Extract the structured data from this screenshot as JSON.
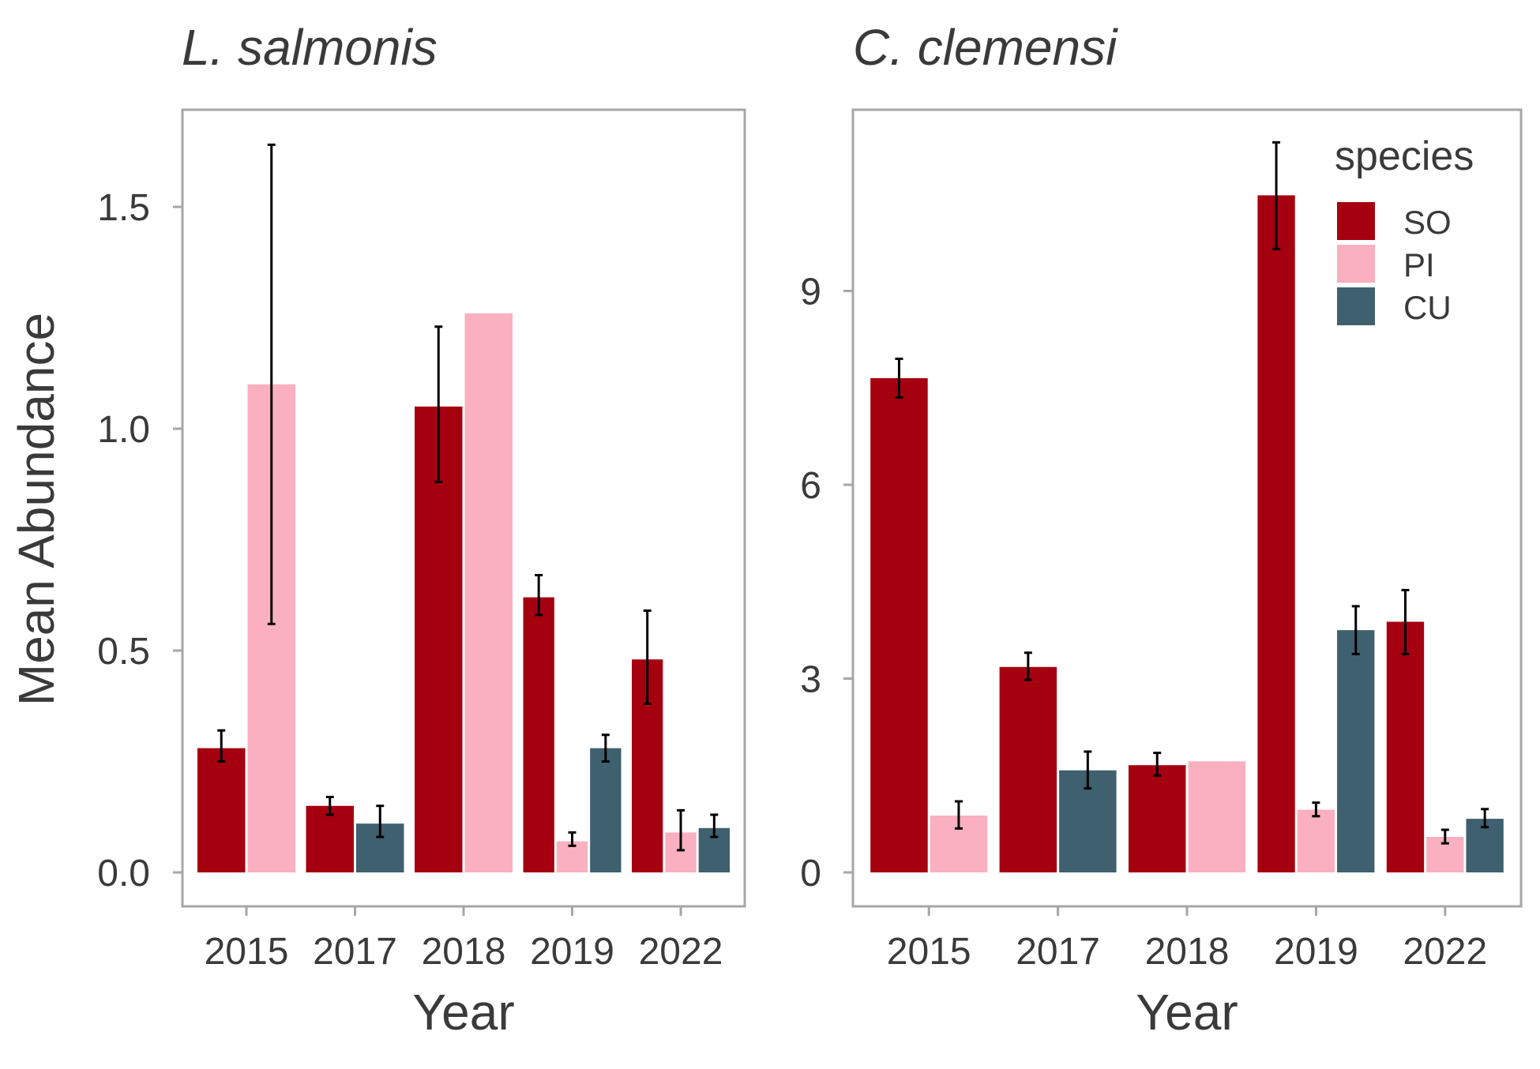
{
  "colors": {
    "SO": "#a50010",
    "PI": "#fab0c0",
    "CU": "#3f606e",
    "frame": "#a6a6a6",
    "text": "#3a3a3a",
    "error_bar": "#000000"
  },
  "legend": {
    "title": "species",
    "items": [
      {
        "key": "SO",
        "label": "SO"
      },
      {
        "key": "PI",
        "label": "PI"
      },
      {
        "key": "CU",
        "label": "CU"
      }
    ],
    "placement": "top-right of right panel"
  },
  "shared": {
    "ylabel": "Mean Abundance",
    "xlabel": "Year"
  },
  "chart_data": [
    {
      "type": "bar",
      "title": "L. salmonis",
      "xlabel": "Year",
      "ylabel": "Mean Abundance",
      "categories": [
        "2015",
        "2017",
        "2018",
        "2019",
        "2022"
      ],
      "yticks": [
        0.0,
        0.5,
        1.0,
        1.5
      ],
      "ytick_labels": [
        "0.0",
        "0.5",
        "1.0",
        "1.5"
      ],
      "ylim": [
        -0.08,
        1.72
      ],
      "grid": false,
      "groups": [
        {
          "category": "2015",
          "bars": [
            {
              "species": "SO",
              "value": 0.28,
              "err": [
                0.25,
                0.32
              ]
            },
            {
              "species": "PI",
              "value": 1.1,
              "err": [
                0.56,
                1.64
              ]
            }
          ]
        },
        {
          "category": "2017",
          "bars": [
            {
              "species": "SO",
              "value": 0.15,
              "err": [
                0.13,
                0.17
              ]
            },
            {
              "species": "CU",
              "value": 0.11,
              "err": [
                0.08,
                0.15
              ]
            }
          ]
        },
        {
          "category": "2018",
          "bars": [
            {
              "species": "SO",
              "value": 1.05,
              "err": [
                0.88,
                1.23
              ]
            },
            {
              "species": "PI",
              "value": 1.26
            }
          ]
        },
        {
          "category": "2019",
          "bars": [
            {
              "species": "SO",
              "value": 0.62,
              "err": [
                0.58,
                0.67
              ]
            },
            {
              "species": "PI",
              "value": 0.07,
              "err": [
                0.06,
                0.09
              ]
            },
            {
              "species": "CU",
              "value": 0.28,
              "err": [
                0.25,
                0.31
              ]
            }
          ]
        },
        {
          "category": "2022",
          "bars": [
            {
              "species": "SO",
              "value": 0.48,
              "err": [
                0.38,
                0.59
              ]
            },
            {
              "species": "PI",
              "value": 0.09,
              "err": [
                0.05,
                0.14
              ]
            },
            {
              "species": "CU",
              "value": 0.1,
              "err": [
                0.08,
                0.13
              ]
            }
          ]
        }
      ]
    },
    {
      "type": "bar",
      "title": "C. clemensi",
      "xlabel": "Year",
      "ylabel": "",
      "categories": [
        "2015",
        "2017",
        "2018",
        "2019",
        "2022"
      ],
      "yticks": [
        0,
        3,
        6,
        9
      ],
      "ytick_labels": [
        "0",
        "3",
        "6",
        "9"
      ],
      "ylim": [
        -0.52,
        11.8
      ],
      "grid": false,
      "groups": [
        {
          "category": "2015",
          "bars": [
            {
              "species": "SO",
              "value": 7.65,
              "err": [
                7.35,
                7.95
              ]
            },
            {
              "species": "PI",
              "value": 0.88,
              "err": [
                0.68,
                1.1
              ]
            }
          ]
        },
        {
          "category": "2017",
          "bars": [
            {
              "species": "SO",
              "value": 3.18,
              "err": [
                2.98,
                3.4
              ]
            },
            {
              "species": "CU",
              "value": 1.58,
              "err": [
                1.3,
                1.87
              ]
            }
          ]
        },
        {
          "category": "2018",
          "bars": [
            {
              "species": "SO",
              "value": 1.66,
              "err": [
                1.5,
                1.85
              ]
            },
            {
              "species": "PI",
              "value": 1.72
            }
          ]
        },
        {
          "category": "2019",
          "bars": [
            {
              "species": "SO",
              "value": 10.48,
              "err": [
                9.65,
                11.3
              ]
            },
            {
              "species": "PI",
              "value": 0.97,
              "err": [
                0.87,
                1.08
              ]
            },
            {
              "species": "CU",
              "value": 3.75,
              "err": [
                3.38,
                4.12
              ]
            }
          ]
        },
        {
          "category": "2022",
          "bars": [
            {
              "species": "SO",
              "value": 3.88,
              "err": [
                3.38,
                4.37
              ]
            },
            {
              "species": "PI",
              "value": 0.55,
              "err": [
                0.45,
                0.66
              ]
            },
            {
              "species": "CU",
              "value": 0.83,
              "err": [
                0.7,
                0.98
              ]
            }
          ]
        }
      ]
    }
  ]
}
